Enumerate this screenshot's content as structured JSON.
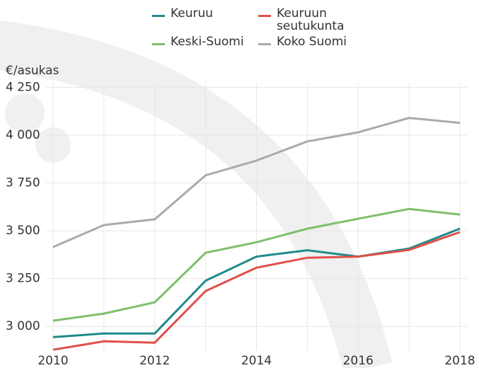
{
  "chart_data": {
    "type": "line",
    "y_label": "€/asukas",
    "x": [
      2010,
      2011,
      2012,
      2013,
      2014,
      2015,
      2016,
      2017,
      2018
    ],
    "xlim": [
      2010,
      2018
    ],
    "xticks": [
      2010,
      2012,
      2014,
      2016,
      2018
    ],
    "ylim": [
      2875,
      4270
    ],
    "yticks": [
      {
        "value": 3000,
        "label": "3 000"
      },
      {
        "value": 3250,
        "label": "3 250"
      },
      {
        "value": 3500,
        "label": "3 500"
      },
      {
        "value": 3750,
        "label": "3 750"
      },
      {
        "value": 4000,
        "label": "4 000"
      },
      {
        "value": 4250,
        "label": "4 250"
      }
    ],
    "grid": true,
    "series": [
      {
        "name": "Keuruu",
        "color": "#1f8a8a",
        "values": [
          2944,
          2963,
          2963,
          3239,
          3365,
          3398,
          3365,
          3407,
          3511
        ]
      },
      {
        "name": "Keuruun seutukunta",
        "color": "#e0504a",
        "values": [
          2878,
          2922,
          2915,
          3185,
          3307,
          3359,
          3365,
          3400,
          3493
        ]
      },
      {
        "name": "Keski-Suomi",
        "color": "#7dbf6a",
        "values": [
          3030,
          3067,
          3126,
          3385,
          3440,
          3511,
          3563,
          3614,
          3585
        ]
      },
      {
        "name": "Koko Suomi",
        "color": "#aaaaaa",
        "values": [
          3415,
          3530,
          3560,
          3790,
          3867,
          3967,
          4015,
          4090,
          4064
        ]
      }
    ]
  }
}
